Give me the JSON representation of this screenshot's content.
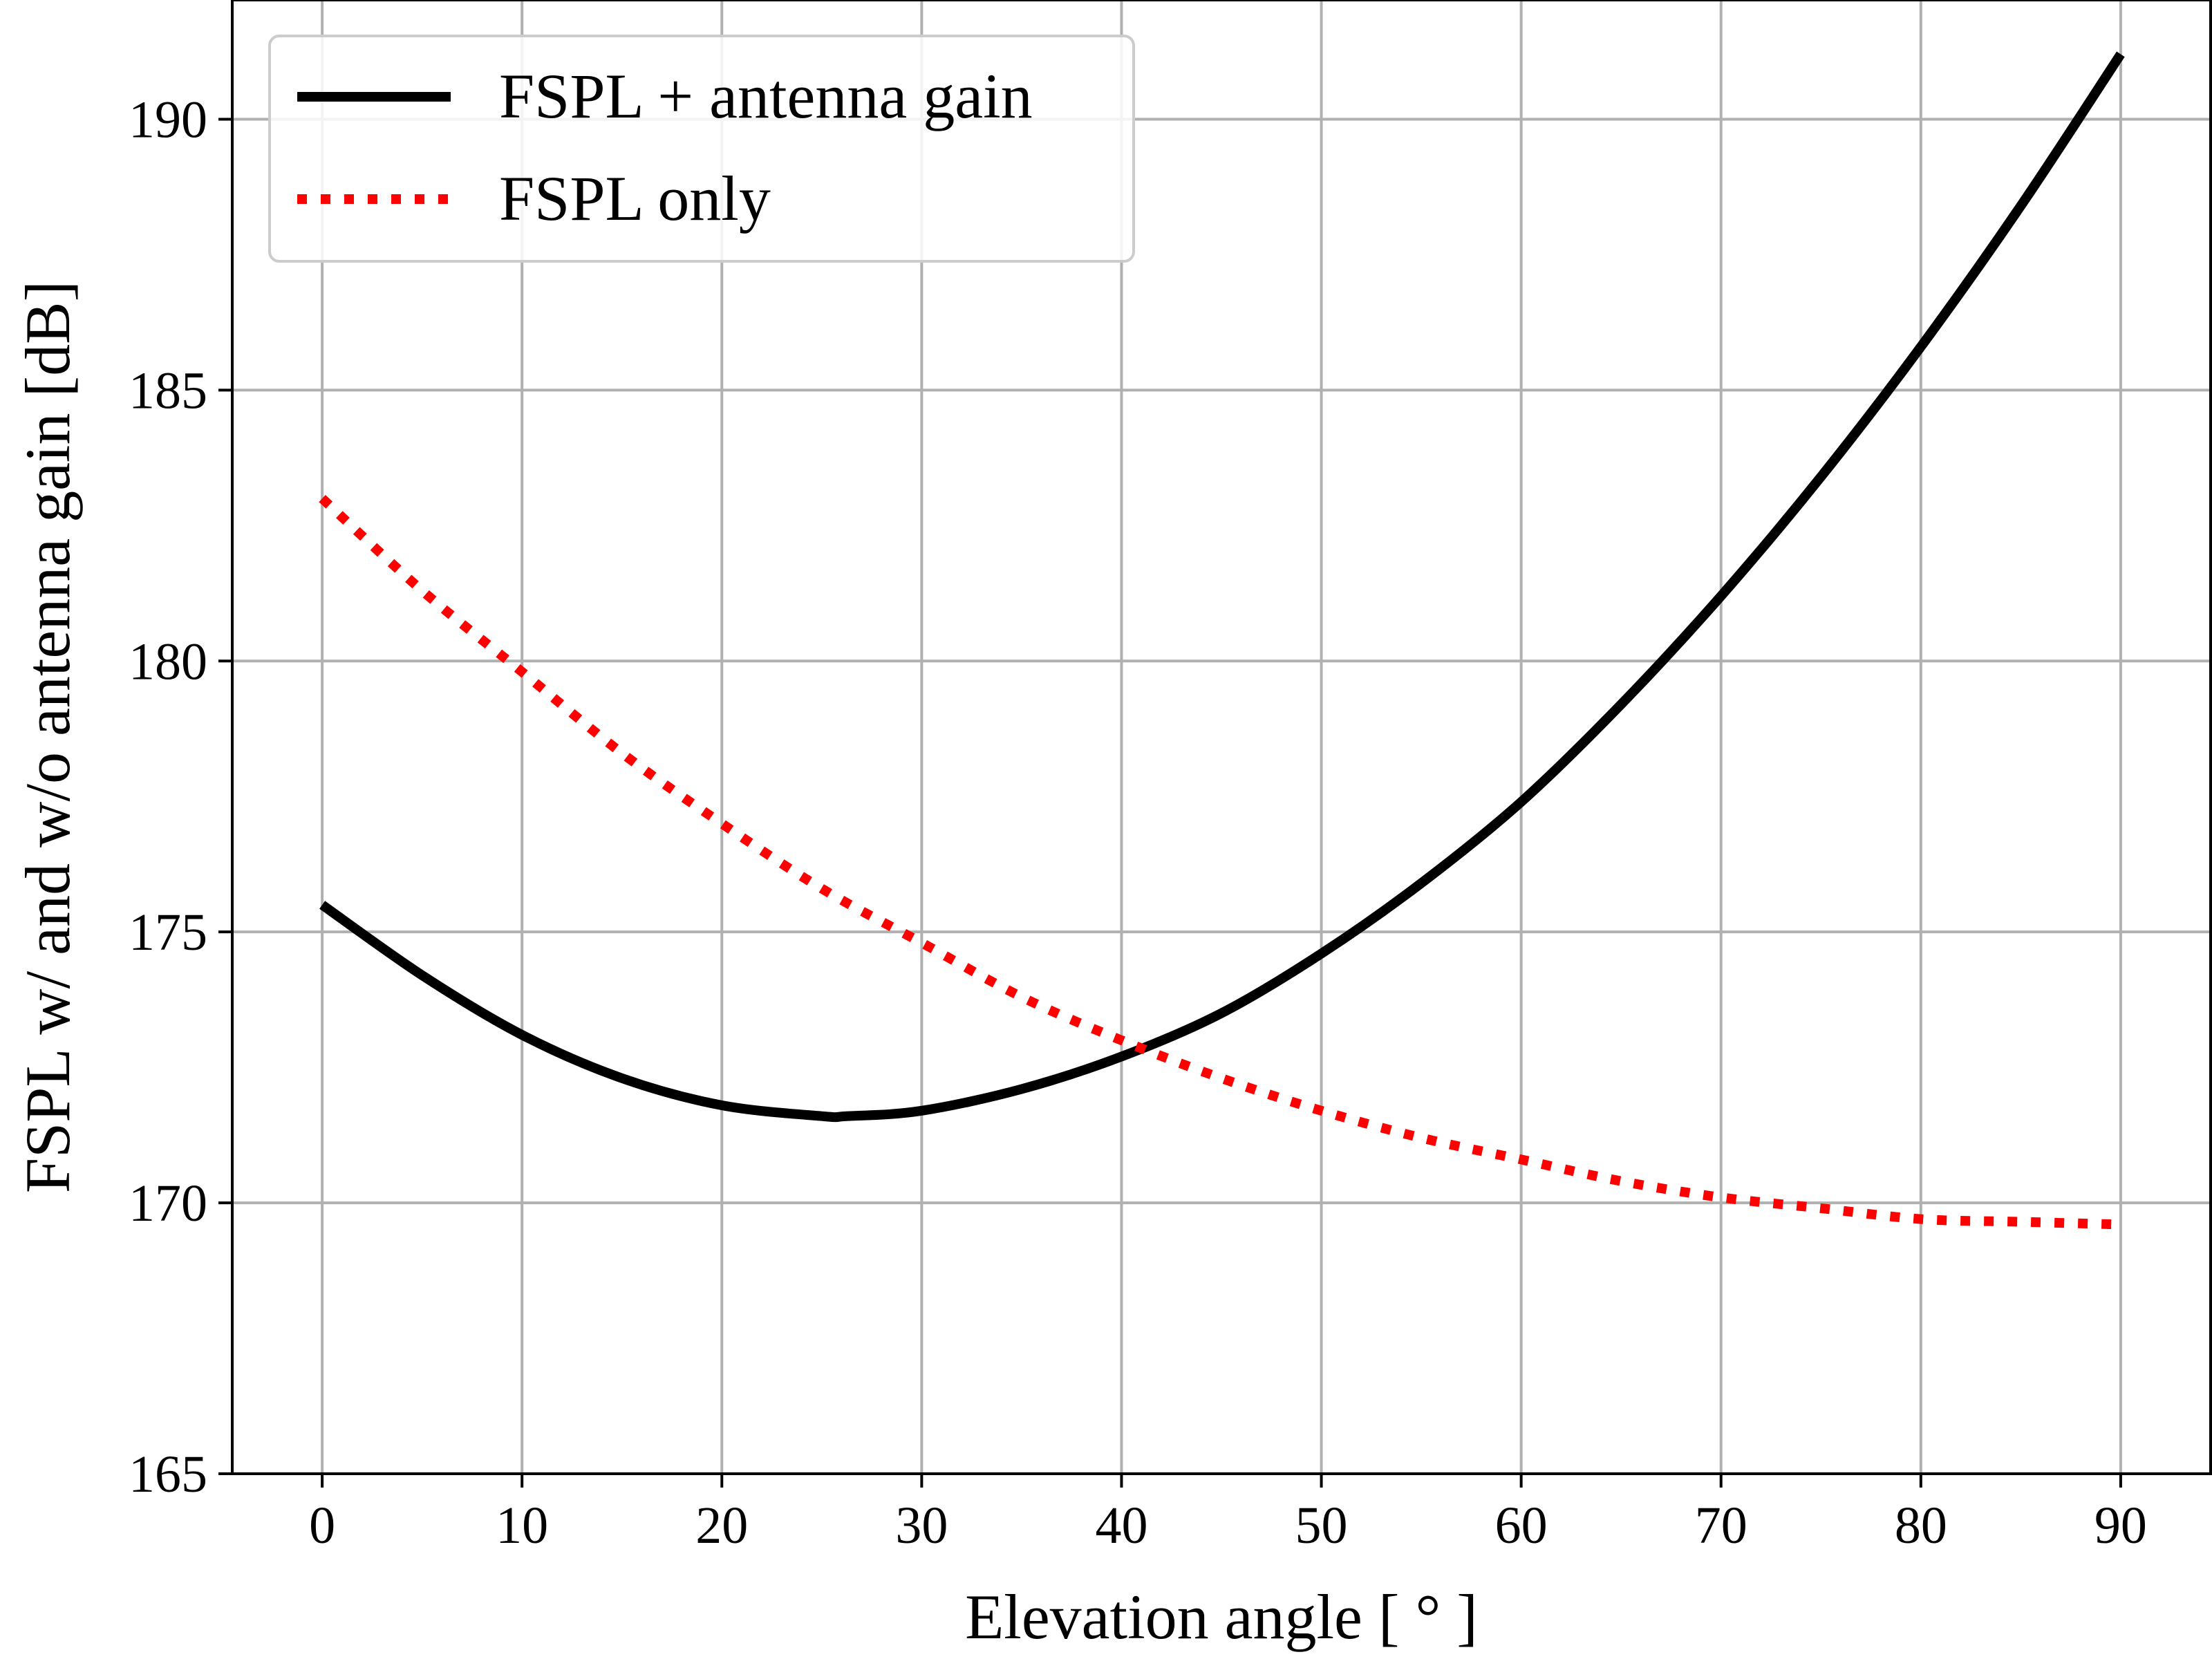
{
  "chart_data": {
    "type": "line",
    "title": "",
    "xlabel": "Elevation angle [ ° ]",
    "ylabel": "FSPL w/ and w/o antenna gain [dB]",
    "xlim": [
      -4.5,
      94.5
    ],
    "ylim": [
      165,
      192.2
    ],
    "xticks": [
      0,
      10,
      20,
      30,
      40,
      50,
      60,
      70,
      80,
      90
    ],
    "yticks": [
      165,
      170,
      175,
      180,
      185,
      190
    ],
    "grid": true,
    "legend_position": "top-left",
    "series": [
      {
        "name": "FSPL + antenna gain",
        "color": "#000000",
        "style": "solid",
        "x": [
          0,
          5,
          10,
          15,
          20,
          25,
          26.3,
          30,
          35,
          40,
          45,
          50,
          55,
          60,
          65,
          70,
          75,
          80,
          85,
          90
        ],
        "y": [
          175.5,
          174.2,
          173.1,
          172.3,
          171.8,
          171.6,
          171.6,
          171.7,
          172.1,
          172.7,
          173.5,
          174.6,
          175.9,
          177.4,
          179.2,
          181.2,
          183.4,
          185.8,
          188.4,
          191.2
        ]
      },
      {
        "name": "FSPL only",
        "color": "#ff0000",
        "style": "dotted",
        "x": [
          0,
          5,
          10,
          15,
          20,
          25,
          30,
          35,
          40,
          45,
          50,
          55,
          60,
          65,
          70,
          75,
          80,
          85,
          90
        ],
        "y": [
          183.0,
          181.3,
          179.8,
          178.3,
          177.0,
          175.8,
          174.8,
          173.8,
          173.0,
          172.3,
          171.7,
          171.2,
          170.8,
          170.4,
          170.1,
          169.9,
          169.7,
          169.65,
          169.6
        ]
      }
    ]
  }
}
